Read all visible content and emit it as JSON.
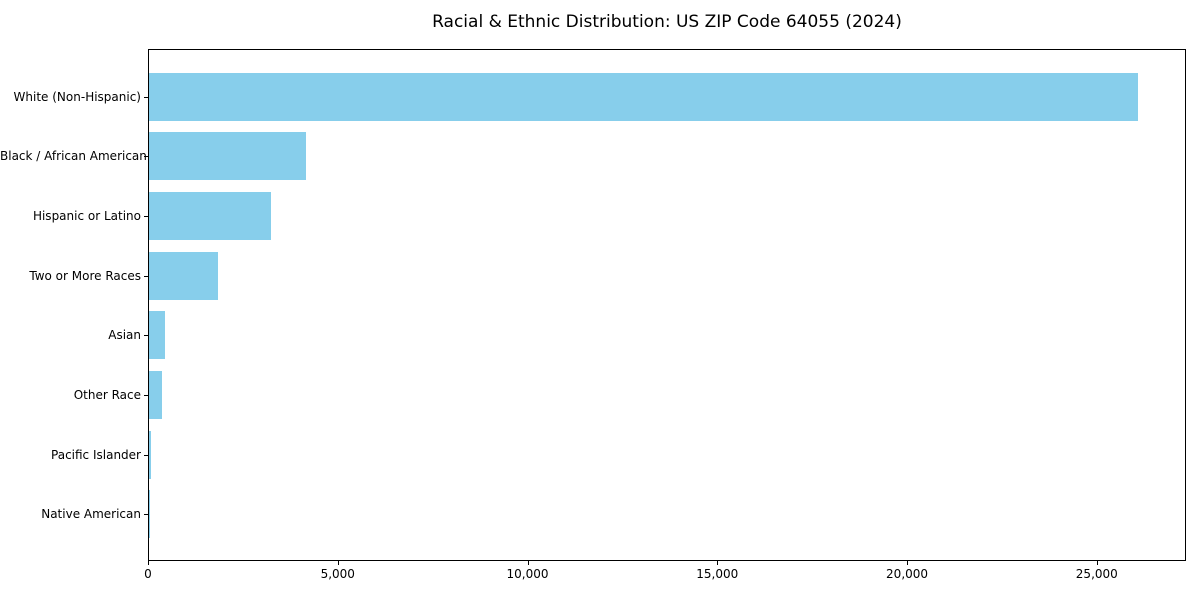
{
  "chart_data": {
    "type": "bar",
    "orientation": "horizontal",
    "title": "Racial & Ethnic Distribution: US ZIP Code 64055 (2024)",
    "categories": [
      "White (Non-Hispanic)",
      "Black / African American",
      "Hispanic or Latino",
      "Two or More Races",
      "Asian",
      "Other Race",
      "Pacific Islander",
      "Native American"
    ],
    "values": [
      26050,
      4140,
      3210,
      1820,
      420,
      350,
      40,
      15
    ],
    "xlabel": "",
    "ylabel": "",
    "xlim": [
      0,
      27350
    ],
    "x_ticks": [
      0,
      5000,
      10000,
      15000,
      20000,
      25000
    ],
    "x_tick_labels": [
      "0",
      "5,000",
      "10,000",
      "15,000",
      "20,000",
      "25,000"
    ],
    "bar_color": "#87CEEB",
    "axis_color": "#000000",
    "text_color": "#000000",
    "background_color": "#ffffff",
    "grid": false,
    "legend": false,
    "sort_order": "descending"
  }
}
